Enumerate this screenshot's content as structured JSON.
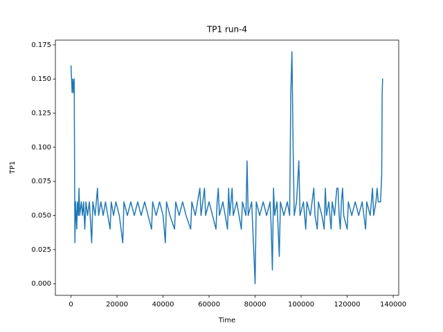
{
  "chart_data": {
    "type": "line",
    "title": "TP1 run-4",
    "x_label": "Time",
    "y_label": "TP1",
    "xlim": [
      -6780,
      142380
    ],
    "ylim": [
      -0.0085,
      0.1785
    ],
    "xticks": [
      0,
      20000,
      40000,
      60000,
      80000,
      100000,
      120000,
      140000
    ],
    "yticks": [
      {
        "value": 0,
        "label": "0.000"
      },
      0.025,
      {
        "value": 0.05,
        "label": "0.050"
      },
      0.075,
      {
        "value": 0.1,
        "label": "0.100"
      },
      0.125,
      {
        "value": 0.15,
        "label": "0.150"
      },
      0.175
    ],
    "x": [
      0,
      500,
      800,
      1100,
      1400,
      1700,
      2000,
      2500,
      2800,
      3200,
      3500,
      3800,
      4500,
      5000,
      5500,
      6000,
      6500,
      7200,
      8000,
      9000,
      9500,
      10500,
      11500,
      12000,
      13000,
      14000,
      15000,
      16000,
      17000,
      17500,
      18500,
      19500,
      21000,
      22500,
      23000,
      24500,
      26000,
      27500,
      29000,
      30500,
      32000,
      33500,
      35000,
      35500,
      37000,
      38500,
      40000,
      41000,
      41500,
      43000,
      45000,
      45500,
      47000,
      48500,
      50000,
      52000,
      52500,
      54000,
      56000,
      56500,
      58000,
      58500,
      60000,
      61500,
      63000,
      63500,
      64000,
      64500,
      66000,
      68000,
      68500,
      69000,
      70000,
      70500,
      72000,
      74000,
      74500,
      76000,
      76500,
      77000,
      78500,
      80000,
      80500,
      82000,
      83500,
      85000,
      86500,
      87000,
      87500,
      88000,
      88500,
      89500,
      90000,
      90500,
      91000,
      92500,
      94000,
      95000,
      95500,
      96000,
      96500,
      97000,
      98000,
      99000,
      99500,
      101000,
      102000,
      102500,
      104000,
      105500,
      106000,
      107000,
      107500,
      109000,
      110000,
      110500,
      111000,
      112000,
      113000,
      113500,
      114500,
      115500,
      116000,
      116500,
      117000,
      117500,
      118000,
      118500,
      120000,
      120500,
      122000,
      123500,
      125000,
      126500,
      128000,
      128500,
      130000,
      131000,
      131500,
      132500,
      133000,
      133500,
      134500,
      135000,
      135200,
      135400,
      135600
    ],
    "series": [
      {
        "color": "#1f77b4",
        "values": [
          0.16,
          0.14,
          0.15,
          0.14,
          0.15,
          0.03,
          0.06,
          0.04,
          0.06,
          0.05,
          0.07,
          0.05,
          0.06,
          0.05,
          0.06,
          0.04,
          0.06,
          0.05,
          0.06,
          0.03,
          0.06,
          0.05,
          0.07,
          0.05,
          0.06,
          0.05,
          0.06,
          0.05,
          0.04,
          0.06,
          0.05,
          0.06,
          0.05,
          0.03,
          0.06,
          0.05,
          0.06,
          0.05,
          0.06,
          0.05,
          0.06,
          0.05,
          0.04,
          0.06,
          0.05,
          0.06,
          0.05,
          0.03,
          0.06,
          0.05,
          0.04,
          0.06,
          0.05,
          0.06,
          0.05,
          0.04,
          0.06,
          0.05,
          0.07,
          0.05,
          0.07,
          0.05,
          0.06,
          0.05,
          0.04,
          0.06,
          0.07,
          0.05,
          0.06,
          0.04,
          0.07,
          0.05,
          0.07,
          0.05,
          0.06,
          0.04,
          0.06,
          0.05,
          0.09,
          0.05,
          0.06,
          0,
          0.06,
          0.05,
          0.06,
          0.05,
          0.06,
          0.04,
          0.01,
          0.07,
          0.05,
          0.06,
          0.04,
          0.02,
          0.06,
          0.05,
          0.06,
          0.05,
          0.14,
          0.17,
          0.1,
          0.05,
          0.06,
          0.09,
          0.05,
          0.06,
          0.04,
          0.06,
          0.05,
          0.07,
          0.05,
          0.04,
          0.06,
          0.05,
          0.04,
          0.07,
          0.05,
          0.06,
          0.04,
          0.06,
          0.05,
          0.07,
          0.07,
          0.05,
          0.04,
          0.06,
          0.07,
          0.05,
          0.04,
          0.06,
          0.05,
          0.06,
          0.05,
          0.06,
          0.04,
          0.06,
          0.05,
          0.07,
          0.05,
          0.06,
          0.07,
          0.06,
          0.06,
          0.08,
          0.14,
          0.15,
          0.15
        ]
      }
    ]
  }
}
